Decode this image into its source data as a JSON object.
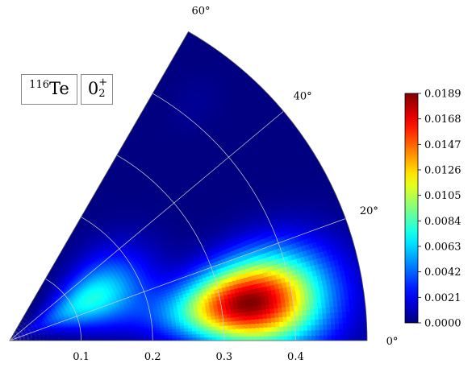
{
  "panel": {
    "nucleus_mass": "116",
    "nucleus_symbol": "Te",
    "state_base": "0",
    "state_sub": "2",
    "state_sup": "+"
  },
  "chart_data": {
    "type": "heatmap",
    "projection": "polar-wedge",
    "radial_axis": {
      "range": [
        0,
        0.5
      ],
      "ticks": [
        0.1,
        0.2,
        0.3,
        0.4
      ],
      "tick_labels": [
        "0.1",
        "0.2",
        "0.3",
        "0.4"
      ]
    },
    "angular_axis": {
      "range_deg": [
        0,
        60
      ],
      "ticks_deg": [
        0,
        20,
        40,
        60
      ],
      "tick_labels": [
        "0°",
        "20°",
        "40°",
        "60°"
      ]
    },
    "grid": true,
    "colormap": "jet",
    "colorbar": {
      "min": 0.0,
      "max": 0.0189,
      "ticks": [
        0.0,
        0.0021,
        0.0042,
        0.0063,
        0.0084,
        0.0105,
        0.0126,
        0.0147,
        0.0168,
        0.0189
      ],
      "tick_labels": [
        "0.0000",
        "0.0021",
        "0.0042",
        "0.0063",
        "0.0084",
        "0.0105",
        "0.0126",
        "0.0147",
        "0.0168",
        "0.0189"
      ]
    },
    "peaks": [
      {
        "beta": 0.34,
        "gamma_deg": 9,
        "value": 0.0189,
        "width_beta": 0.07,
        "width_gamma_deg": 7
      },
      {
        "beta": 0.13,
        "gamma_deg": 27,
        "value": 0.0076,
        "width_beta": 0.055,
        "width_gamma_deg": 12
      },
      {
        "beta": 0.42,
        "gamma_deg": 52,
        "value": 0.0004,
        "width_beta": 0.03,
        "width_gamma_deg": 3
      }
    ]
  }
}
